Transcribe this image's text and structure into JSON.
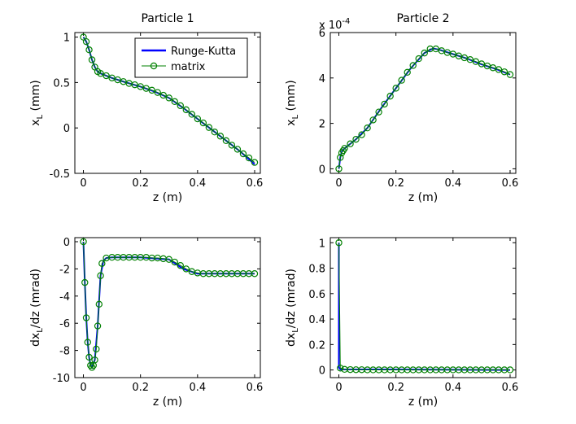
{
  "chart_data": [
    {
      "type": "line",
      "title": "Particle 1",
      "xlabel": "z (m)",
      "ylabel": "x",
      "ylabel_sub": "L",
      "ylabel_suffix": " (mm)",
      "xlim": [
        -0.03,
        0.62
      ],
      "ylim": [
        -0.5,
        1.05
      ],
      "xticks": [
        0,
        0.2,
        0.4,
        0.6
      ],
      "xtick_labels": [
        "0",
        "0.2",
        "0.4",
        "0.6"
      ],
      "yticks": [
        -0.5,
        0,
        0.5,
        1
      ],
      "ytick_labels": [
        "-0.5",
        "0",
        "0.5",
        "1"
      ],
      "grid": false,
      "legend": {
        "location": "top-right",
        "entries": [
          "Runge-Kutta",
          "matrix"
        ]
      },
      "series": [
        {
          "name": "Runge-Kutta",
          "style": "line",
          "color": "#0000ff",
          "x": [
            0,
            0.01,
            0.02,
            0.03,
            0.04,
            0.05,
            0.06,
            0.08,
            0.1,
            0.15,
            0.2,
            0.25,
            0.3,
            0.35,
            0.4,
            0.45,
            0.5,
            0.55,
            0.6
          ],
          "y": [
            1.0,
            0.95,
            0.86,
            0.75,
            0.67,
            0.62,
            0.6,
            0.575,
            0.55,
            0.5,
            0.455,
            0.4,
            0.33,
            0.22,
            0.1,
            -0.02,
            -0.14,
            -0.26,
            -0.4
          ]
        },
        {
          "name": "matrix",
          "style": "markers",
          "color": "#008000",
          "x": [
            0,
            0.01,
            0.02,
            0.03,
            0.04,
            0.05,
            0.06,
            0.08,
            0.1,
            0.12,
            0.14,
            0.16,
            0.18,
            0.2,
            0.22,
            0.24,
            0.26,
            0.28,
            0.3,
            0.32,
            0.34,
            0.36,
            0.38,
            0.4,
            0.42,
            0.44,
            0.46,
            0.48,
            0.5,
            0.52,
            0.54,
            0.56,
            0.58,
            0.6
          ],
          "y": [
            1.0,
            0.95,
            0.86,
            0.75,
            0.67,
            0.62,
            0.6,
            0.575,
            0.55,
            0.53,
            0.51,
            0.49,
            0.475,
            0.455,
            0.435,
            0.415,
            0.39,
            0.36,
            0.33,
            0.29,
            0.245,
            0.2,
            0.15,
            0.1,
            0.055,
            0.005,
            -0.045,
            -0.09,
            -0.14,
            -0.19,
            -0.235,
            -0.285,
            -0.33,
            -0.38
          ]
        }
      ]
    },
    {
      "type": "line",
      "title": "Particle 2",
      "xlabel": "z (m)",
      "ylabel": "x",
      "ylabel_sub": "L",
      "ylabel_suffix": " (mm)",
      "xlim": [
        -0.03,
        0.62
      ],
      "ylim": [
        -0.2,
        6
      ],
      "xticks": [
        0,
        0.2,
        0.4,
        0.6
      ],
      "xtick_labels": [
        "0",
        "0.2",
        "0.4",
        "0.6"
      ],
      "yticks": [
        0,
        2,
        4,
        6
      ],
      "ytick_labels": [
        "0",
        "2",
        "4",
        "6"
      ],
      "exponent_label": "x 10",
      "exponent_power": "-4",
      "grid": false,
      "series": [
        {
          "name": "Runge-Kutta",
          "style": "line",
          "color": "#0000ff",
          "x": [
            0,
            0.005,
            0.01,
            0.02,
            0.04,
            0.06,
            0.1,
            0.15,
            0.2,
            0.25,
            0.3,
            0.33,
            0.35,
            0.4,
            0.45,
            0.5,
            0.55,
            0.6
          ],
          "y": [
            0,
            0.5,
            0.75,
            0.9,
            1.1,
            1.3,
            1.8,
            2.7,
            3.55,
            4.4,
            5.1,
            5.3,
            5.25,
            5.05,
            4.85,
            4.6,
            4.4,
            4.15
          ]
        },
        {
          "name": "matrix",
          "style": "markers",
          "color": "#008000",
          "x": [
            0,
            0.005,
            0.01,
            0.015,
            0.02,
            0.04,
            0.06,
            0.08,
            0.1,
            0.12,
            0.14,
            0.16,
            0.18,
            0.2,
            0.22,
            0.24,
            0.26,
            0.28,
            0.3,
            0.32,
            0.34,
            0.36,
            0.38,
            0.4,
            0.42,
            0.44,
            0.46,
            0.48,
            0.5,
            0.52,
            0.54,
            0.56,
            0.58,
            0.6
          ],
          "y": [
            0,
            0.5,
            0.7,
            0.8,
            0.9,
            1.1,
            1.3,
            1.5,
            1.8,
            2.15,
            2.5,
            2.85,
            3.2,
            3.55,
            3.9,
            4.25,
            4.55,
            4.85,
            5.1,
            5.28,
            5.28,
            5.2,
            5.12,
            5.05,
            4.97,
            4.89,
            4.81,
            4.72,
            4.62,
            4.53,
            4.45,
            4.37,
            4.27,
            4.15
          ]
        }
      ]
    },
    {
      "type": "line",
      "title": "",
      "xlabel": "z (m)",
      "ylabel": "dx",
      "ylabel_sub": "L",
      "ylabel_suffix": "/dz (mrad)",
      "xlim": [
        -0.03,
        0.62
      ],
      "ylim": [
        -10,
        0.3
      ],
      "xticks": [
        0,
        0.2,
        0.4,
        0.6
      ],
      "xtick_labels": [
        "0",
        "0.2",
        "0.4",
        "0.6"
      ],
      "yticks": [
        -10,
        -8,
        -6,
        -4,
        -2,
        0
      ],
      "ytick_labels": [
        "-10",
        "-8",
        "-6",
        "-4",
        "-2",
        "0"
      ],
      "grid": false,
      "series": [
        {
          "name": "Runge-Kutta",
          "style": "line",
          "color": "#0000ff",
          "x": [
            0,
            0.005,
            0.01,
            0.015,
            0.02,
            0.025,
            0.03,
            0.04,
            0.05,
            0.06,
            0.07,
            0.08,
            0.1,
            0.2,
            0.3,
            0.35,
            0.4,
            0.5,
            0.6
          ],
          "y": [
            0,
            -3.0,
            -5.6,
            -7.4,
            -8.5,
            -9.1,
            -9.25,
            -8.7,
            -6.2,
            -2.5,
            -1.4,
            -1.2,
            -1.15,
            -1.15,
            -1.3,
            -2.0,
            -2.35,
            -2.35,
            -2.35
          ]
        },
        {
          "name": "matrix",
          "style": "markers",
          "color": "#008000",
          "x": [
            0,
            0.005,
            0.01,
            0.015,
            0.02,
            0.025,
            0.03,
            0.035,
            0.04,
            0.045,
            0.05,
            0.055,
            0.06,
            0.065,
            0.08,
            0.1,
            0.12,
            0.14,
            0.16,
            0.18,
            0.2,
            0.22,
            0.24,
            0.26,
            0.28,
            0.3,
            0.32,
            0.34,
            0.36,
            0.38,
            0.4,
            0.42,
            0.44,
            0.46,
            0.48,
            0.5,
            0.52,
            0.54,
            0.56,
            0.58,
            0.6
          ],
          "y": [
            0,
            -3.0,
            -5.6,
            -7.4,
            -8.5,
            -9.1,
            -9.25,
            -9.1,
            -8.7,
            -7.9,
            -6.2,
            -4.6,
            -2.5,
            -1.6,
            -1.2,
            -1.15,
            -1.15,
            -1.15,
            -1.15,
            -1.15,
            -1.15,
            -1.15,
            -1.2,
            -1.2,
            -1.25,
            -1.3,
            -1.5,
            -1.75,
            -2.0,
            -2.2,
            -2.3,
            -2.35,
            -2.35,
            -2.35,
            -2.35,
            -2.35,
            -2.35,
            -2.35,
            -2.35,
            -2.35,
            -2.35
          ]
        }
      ]
    },
    {
      "type": "line",
      "title": "",
      "xlabel": "z (m)",
      "ylabel": "dx",
      "ylabel_sub": "L",
      "ylabel_suffix": "/dz (mrad)",
      "xlim": [
        -0.03,
        0.62
      ],
      "ylim": [
        -0.06,
        1.04
      ],
      "xticks": [
        0,
        0.2,
        0.4,
        0.6
      ],
      "xtick_labels": [
        "0",
        "0.2",
        "0.4",
        "0.6"
      ],
      "yticks": [
        0,
        0.2,
        0.4,
        0.6,
        0.8,
        1
      ],
      "ytick_labels": [
        "0",
        "0.2",
        "0.4",
        "0.6",
        "0.8",
        "1"
      ],
      "grid": false,
      "series": [
        {
          "name": "Runge-Kutta",
          "style": "line",
          "color": "#0000ff",
          "x": [
            0,
            0.0,
            0.005,
            0.6
          ],
          "y": [
            1.0,
            0.02,
            0.005,
            0.0
          ]
        },
        {
          "name": "matrix",
          "style": "markers",
          "color": "#008000",
          "x": [
            0,
            0.005,
            0.02,
            0.04,
            0.06,
            0.08,
            0.1,
            0.12,
            0.14,
            0.16,
            0.18,
            0.2,
            0.22,
            0.24,
            0.26,
            0.28,
            0.3,
            0.32,
            0.34,
            0.36,
            0.38,
            0.4,
            0.42,
            0.44,
            0.46,
            0.48,
            0.5,
            0.52,
            0.54,
            0.56,
            0.58,
            0.6
          ],
          "y": [
            1.0,
            0.015,
            0.005,
            0.003,
            0.002,
            0.002,
            0.001,
            0.001,
            0.001,
            0.001,
            0.001,
            0.001,
            0.001,
            0.001,
            0.001,
            0.001,
            0.001,
            0.001,
            0.001,
            0.001,
            0.001,
            0.001,
            0.001,
            0.001,
            0.001,
            0.001,
            0.001,
            0.001,
            0.001,
            0.001,
            0.001,
            0.001
          ]
        }
      ]
    }
  ]
}
